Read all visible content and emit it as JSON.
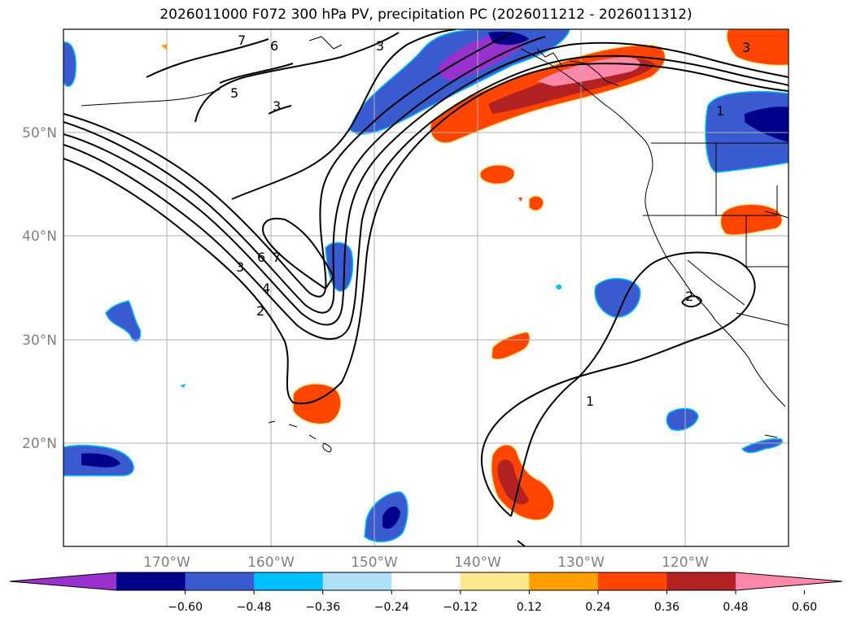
{
  "title": "2026011000 F072 300 hPa PV, precipitation PC (2026011212 - 2026011312)",
  "map": {
    "latitude_labels": [
      "50°N",
      "40°N",
      "30°N",
      "20°N"
    ],
    "longitude_labels": [
      "170°W",
      "160°W",
      "150°W",
      "140°W",
      "130°W",
      "120°W"
    ],
    "contour_labels": [
      "1",
      "2",
      "3",
      "4",
      "5",
      "6",
      "7"
    ]
  },
  "colorbar": {
    "ticks": [
      "−0.60",
      "−0.48",
      "−0.36",
      "−0.24",
      "−0.12",
      "0.12",
      "0.24",
      "0.36",
      "0.48",
      "0.60"
    ],
    "colors": [
      "#9932cc",
      "#00008b",
      "#3a5bcf",
      "#00bfff",
      "#aee0fa",
      "#ffffff",
      "#fde98c",
      "#ff9f00",
      "#ff4500",
      "#b22222",
      "#ff88aa"
    ]
  }
}
